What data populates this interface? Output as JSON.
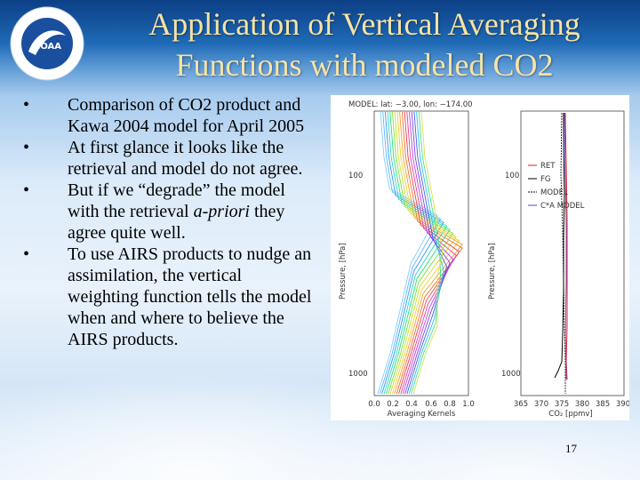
{
  "slide": {
    "title_line1": "Application of Vertical Averaging",
    "title_line2": "Functions with modeled CO2",
    "page_number": "17",
    "title_color": "#f6e3a4"
  },
  "logo": {
    "text": "NOAA",
    "icon": "noaa-logo-icon"
  },
  "bullets": [
    {
      "text": "Comparison of CO2 product and Kawa 2004 model for April 2005"
    },
    {
      "text": "At first glance it looks like the retrieval and model do not agree."
    },
    {
      "text_before": "But if we “degrade” the model with the retrieval ",
      "text_em": "a-priori",
      "text_after": " they agree quite well."
    },
    {
      "text": "To use AIRS products to nudge an assimilation, the vertical weighting function tells the model when and where to believe the AIRS products."
    }
  ],
  "bullet_symbol": "•",
  "figure": {
    "header": "MODEL: lat: −3.00, lon: −174.00",
    "left_plot": {
      "ylabel": "Pressure, [hPa]",
      "xlabel": "Averaging Kernels",
      "yticks": [
        "100",
        "1000"
      ],
      "xticks": [
        "0.0",
        "0.2",
        "0.4",
        "0.6",
        "0.8",
        "1.0"
      ]
    },
    "right_plot": {
      "ylabel": "Pressure, [hPa]",
      "xlabel": "CO₂ [ppmv]",
      "yticks": [
        "100",
        "1000"
      ],
      "xticks": [
        "365",
        "370",
        "375",
        "380",
        "385",
        "390"
      ],
      "legend": [
        {
          "label": "RET",
          "color": "#e02020"
        },
        {
          "label": "FG",
          "color": "#000000"
        },
        {
          "label": "MODEL",
          "color": "#000000"
        },
        {
          "label": "C*A MODEL",
          "color": "#6a3cc8"
        }
      ]
    }
  }
}
